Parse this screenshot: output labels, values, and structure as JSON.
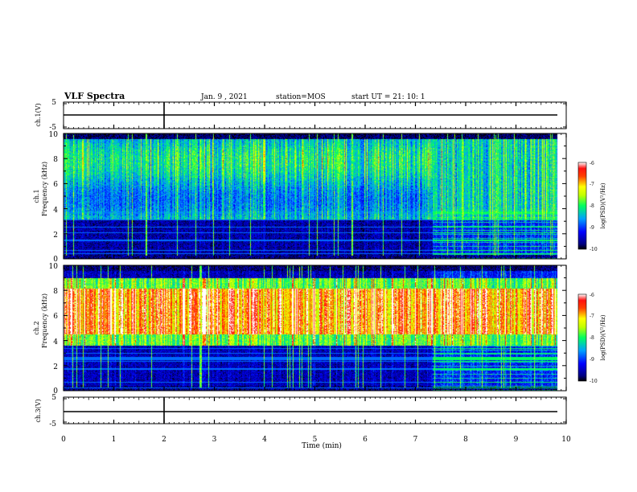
{
  "header": {
    "title": "VLF Spectra",
    "date": "Jan. 9 , 2021",
    "station": "station=MOS",
    "start_time": "start UT = 21: 10: 1"
  },
  "chart_data": {
    "type": "heatmap",
    "xlabel": "Time (min)",
    "x_ticks": [
      "0",
      "1",
      "2",
      "3",
      "4",
      "5",
      "6",
      "7",
      "8",
      "9",
      "10"
    ],
    "xlim": [
      0,
      10
    ],
    "panels": [
      {
        "id": "ch1-waveform",
        "type": "line",
        "ylabel": "ch.1(V)",
        "ylim": [
          -5,
          5
        ],
        "y_ticks": [
          "5",
          "-5"
        ]
      },
      {
        "id": "ch1-spectrogram",
        "type": "heatmap",
        "ylabel": "ch.1",
        "ylabel2": "Frequency (kHz)",
        "ylim": [
          0,
          10
        ],
        "y_ticks": [
          "0",
          "2",
          "4",
          "6",
          "8",
          "10"
        ],
        "colorbar": {
          "label": "log(PSD)(V²/Hz)",
          "range": [
            -10,
            -6
          ],
          "ticks": [
            "-6",
            "-7",
            "-8",
            "-9",
            "-10"
          ]
        }
      },
      {
        "id": "ch2-spectrogram",
        "type": "heatmap",
        "ylabel": "ch.2",
        "ylabel2": "Frequency (kHz)",
        "ylim": [
          0,
          10
        ],
        "y_ticks": [
          "0",
          "2",
          "4",
          "6",
          "8",
          "10"
        ],
        "colorbar": {
          "label": "log(PSD)(V²/Hz)",
          "range": [
            -10,
            -6
          ],
          "ticks": [
            "-6",
            "-7",
            "-8",
            "-9",
            "-10"
          ]
        }
      },
      {
        "id": "ch3-waveform",
        "type": "line",
        "ylabel": "ch.3(V)",
        "ylim": [
          -5,
          5
        ],
        "y_ticks": [
          "5",
          "-5"
        ]
      }
    ],
    "data_end_min": 9.82,
    "mode_change_min": 7.35
  }
}
